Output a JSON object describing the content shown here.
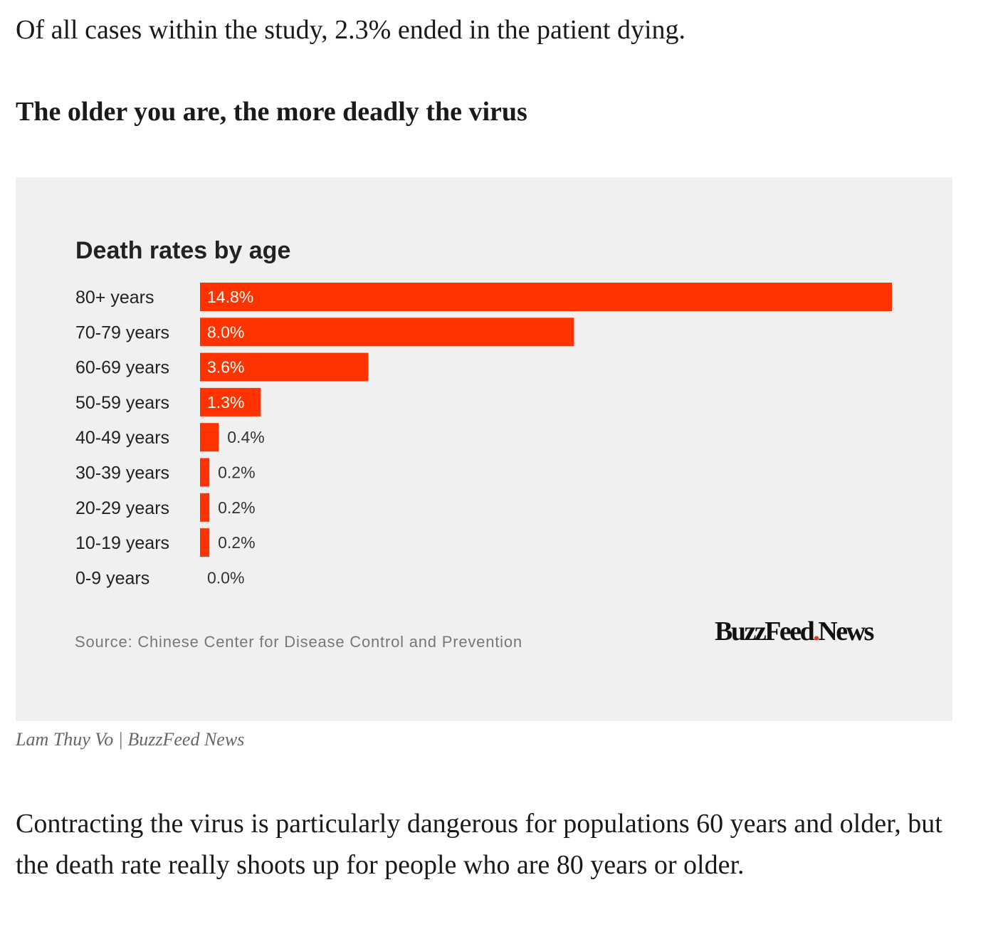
{
  "article": {
    "intro": "Of all cases within the study, 2.3% ended in the patient dying.",
    "subheading": "The older you are, the more deadly the virus",
    "credit": "Lam Thuy Vo | BuzzFeed News",
    "closing": "Contracting the virus is particularly dangerous for populations 60 years and older, but the death rate really shoots up for people who are 80 years or older."
  },
  "figure": {
    "background": "#f0f0f0",
    "source": "Source: Chinese Center for Disease Control and Prevention",
    "logo_text": "BuzzFeed News",
    "logo_part1": "BuzzFeed",
    "logo_dot": ".",
    "logo_part2": "News",
    "logo_dot_color": "#ee3322"
  },
  "chart_data": {
    "type": "bar",
    "orientation": "horizontal",
    "title": "Death rates by age",
    "categories": [
      "80+ years",
      "70-79 years",
      "60-69 years",
      "50-59 years",
      "40-49 years",
      "30-39 years",
      "20-29 years",
      "10-19 years",
      "0-9 years"
    ],
    "values": [
      14.8,
      8.0,
      3.6,
      1.3,
      0.4,
      0.2,
      0.2,
      0.2,
      0.0
    ],
    "value_labels": [
      "14.8%",
      "8.0%",
      "3.6%",
      "1.3%",
      "0.4%",
      "0.2%",
      "0.2%",
      "0.2%",
      "0.0%"
    ],
    "unit": "%",
    "bar_color": "#ff3300",
    "grid": false,
    "legend": "none",
    "xlim": [
      0,
      14.8
    ]
  }
}
